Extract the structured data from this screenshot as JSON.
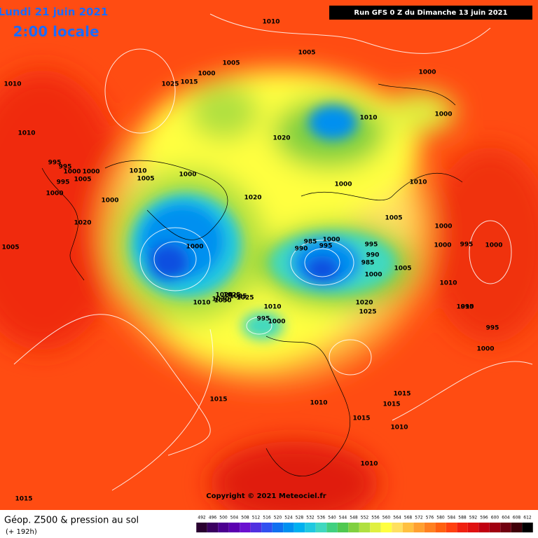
{
  "header": {
    "date": "Lundi 21 juin 2021",
    "time": "2:00 locale",
    "run": "Run GFS 0 Z du Dimanche 13 juin 2021"
  },
  "map": {
    "pressure_labels": [
      "1010",
      "1005",
      "1000",
      "1005",
      "1000",
      "1010",
      "1025",
      "1015",
      "1010",
      "1010",
      "1000",
      "995",
      "995",
      "1000",
      "995",
      "1000",
      "1005",
      "1000",
      "1010",
      "1005",
      "1000",
      "1020",
      "1000",
      "1010",
      "1020",
      "1000",
      "1005",
      "1020",
      "990",
      "985",
      "995",
      "1000",
      "995",
      "990",
      "985",
      "1005",
      "1000",
      "1000",
      "1010",
      "1000",
      "1025",
      "1020",
      "1010",
      "1030",
      "1025",
      "995",
      "1000",
      "1010",
      "1020",
      "1025",
      "1030",
      "1025",
      "1015",
      "1010",
      "1015",
      "1015",
      "1015",
      "1010",
      "1010",
      "1000",
      "995",
      "995",
      "1010",
      "1000",
      "995",
      "1000",
      "1005",
      "1015"
    ],
    "copyright": "Copyright © 2021 Meteociel.fr"
  },
  "legend": {
    "title": "Géop. Z500 & pression au sol",
    "subtitle": "(+ 192h)",
    "values": [
      492,
      496,
      500,
      504,
      508,
      512,
      516,
      520,
      524,
      528,
      532,
      536,
      540,
      544,
      548,
      552,
      556,
      560,
      564,
      568,
      572,
      576,
      580,
      584,
      588,
      592,
      596,
      600,
      604,
      608,
      612
    ],
    "colors": [
      "#2a0030",
      "#3a0060",
      "#4b0090",
      "#5a00b0",
      "#6a10d0",
      "#5030e0",
      "#3050f0",
      "#1070f0",
      "#0090f0",
      "#00b0f0",
      "#20c8e0",
      "#40d8c0",
      "#40d080",
      "#50c850",
      "#80d040",
      "#b0e040",
      "#e0f040",
      "#ffff40",
      "#ffe060",
      "#ffc040",
      "#ffa030",
      "#ff8020",
      "#ff6010",
      "#ff4010",
      "#f02010",
      "#e01010",
      "#c00010",
      "#a00010",
      "#700010",
      "#400008",
      "#000000"
    ]
  }
}
